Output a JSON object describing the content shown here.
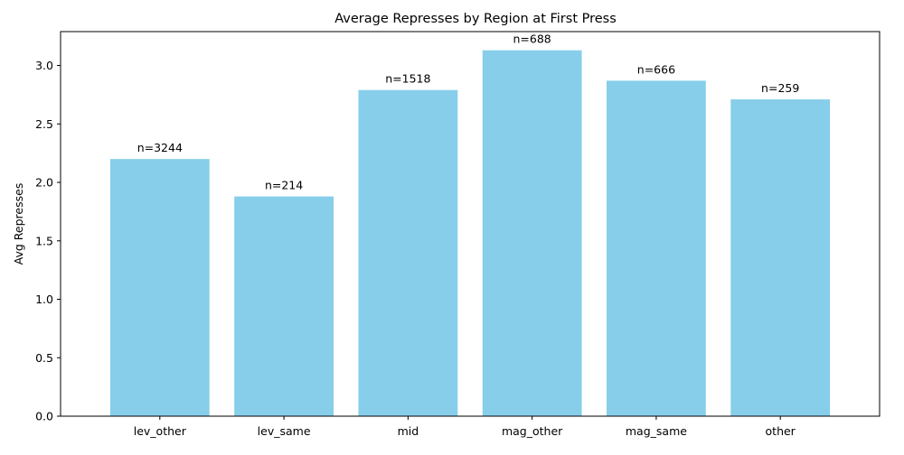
{
  "chart_data": {
    "type": "bar",
    "title": "Average Represses by Region at First Press",
    "xlabel": "",
    "ylabel": "Avg Represses",
    "categories": [
      "lev_other",
      "lev_same",
      "mid",
      "mag_other",
      "mag_same",
      "other"
    ],
    "values": [
      2.2,
      1.88,
      2.79,
      3.13,
      2.87,
      2.71
    ],
    "bar_labels": [
      "n=3244",
      "n=214",
      "n=1518",
      "n=688",
      "n=666",
      "n=259"
    ],
    "ylim": [
      0,
      3.29
    ],
    "yticks": [
      0.0,
      0.5,
      1.0,
      1.5,
      2.0,
      2.5,
      3.0
    ],
    "ytick_labels": [
      "0.0",
      "0.5",
      "1.0",
      "1.5",
      "2.0",
      "2.5",
      "3.0"
    ],
    "bar_color": "#87ceeb",
    "grid": false,
    "legend": "none"
  }
}
